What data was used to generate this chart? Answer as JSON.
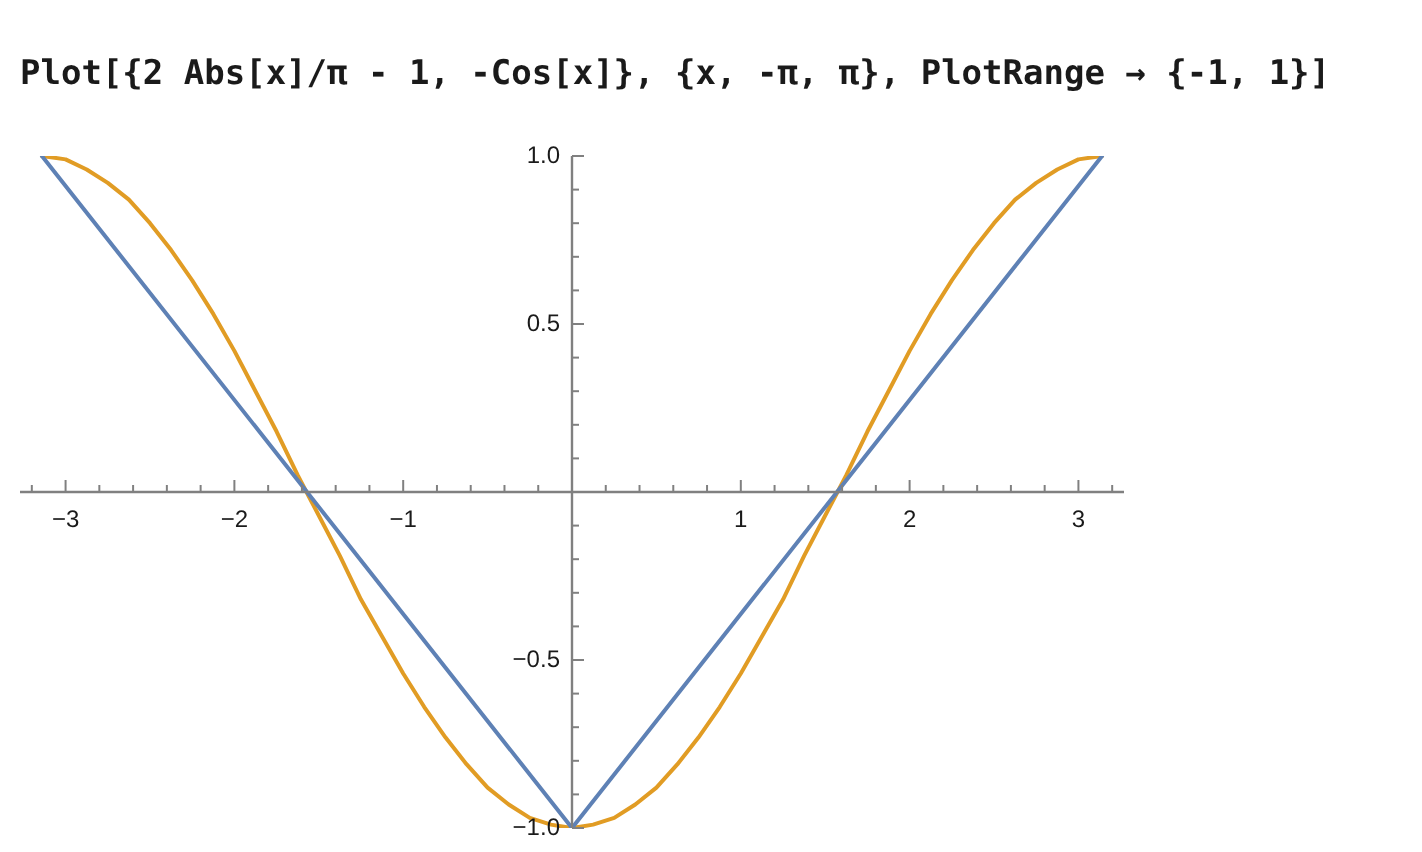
{
  "chart_data": {
    "type": "line",
    "title": "Plot[{2 Abs[x]/π - 1, -Cos[x]}, {x, -π, π}, PlotRange → {-1, 1}]",
    "xlim": [
      -3.27,
      3.27
    ],
    "xticks": [
      {
        "value": -3.2,
        "label": null
      },
      {
        "value": -3,
        "label": "−3"
      },
      {
        "value": -2.8,
        "label": null
      },
      {
        "value": -2.6,
        "label": null
      },
      {
        "value": -2.4,
        "label": null
      },
      {
        "value": -2.2,
        "label": null
      },
      {
        "value": -2,
        "label": "−2"
      },
      {
        "value": -1.8,
        "label": null
      },
      {
        "value": -1.6,
        "label": null
      },
      {
        "value": -1.4,
        "label": null
      },
      {
        "value": -1.2,
        "label": null
      },
      {
        "value": -1,
        "label": "−1"
      },
      {
        "value": -0.8,
        "label": null
      },
      {
        "value": -0.6,
        "label": null
      },
      {
        "value": -0.4,
        "label": null
      },
      {
        "value": -0.2,
        "label": null
      },
      {
        "value": 0.2,
        "label": null
      },
      {
        "value": 0.4,
        "label": null
      },
      {
        "value": 0.6,
        "label": null
      },
      {
        "value": 0.8,
        "label": null
      },
      1,
      {
        "value": 1.2,
        "label": null
      },
      {
        "value": 1.4,
        "label": null
      },
      {
        "value": 1.6,
        "label": null
      },
      {
        "value": 1.8,
        "label": null
      },
      2,
      {
        "value": 2.2,
        "label": null
      },
      {
        "value": 2.4,
        "label": null
      },
      {
        "value": 2.6,
        "label": null
      },
      {
        "value": 2.8,
        "label": null
      },
      3,
      {
        "value": 3.2,
        "label": null
      }
    ],
    "ylim": [
      -1,
      1
    ],
    "yticks": [
      {
        "value": -1,
        "label": "−1.0"
      },
      {
        "value": -0.9,
        "label": null
      },
      {
        "value": -0.8,
        "label": null
      },
      {
        "value": -0.7,
        "label": null
      },
      {
        "value": -0.6,
        "label": null
      },
      {
        "value": -0.5,
        "label": "−0.5"
      },
      {
        "value": -0.4,
        "label": null
      },
      {
        "value": -0.3,
        "label": null
      },
      {
        "value": -0.2,
        "label": null
      },
      {
        "value": -0.1,
        "label": null
      },
      {
        "value": 0.1,
        "label": null
      },
      {
        "value": 0.2,
        "label": null
      },
      {
        "value": 0.3,
        "label": null
      },
      {
        "value": 0.4,
        "label": null
      },
      0.5,
      {
        "value": 0.6,
        "label": null
      },
      {
        "value": 0.7,
        "label": null
      },
      {
        "value": 0.8,
        "label": null
      },
      {
        "value": 0.9,
        "label": null
      },
      {
        "value": 1,
        "label": "1.0"
      }
    ],
    "series": [
      {
        "color": "#5e81b5",
        "x": [
          -3.14,
          0,
          3.14
        ],
        "values": [
          1,
          -1,
          1
        ]
      },
      {
        "color": "#e19c24",
        "x": [
          -3.14,
          -3,
          -2.875,
          -2.75,
          -2.625,
          -2.5,
          -2.375,
          -2.25,
          -2.125,
          -2,
          -1.875,
          -1.75,
          -1.625,
          -1.5,
          -1.375,
          -1.25,
          -1.125,
          -1,
          -0.875,
          -0.75,
          -0.625,
          -0.5,
          -0.375,
          -0.25,
          -0.125,
          0,
          0.125,
          0.25,
          0.375,
          0.5,
          0.625,
          0.75,
          0.875,
          1,
          1.125,
          1.25,
          1.375,
          1.5,
          1.625,
          1.75,
          1.875,
          2,
          2.125,
          2.25,
          2.375,
          2.5,
          2.625,
          2.75,
          2.875,
          3,
          3.14
        ],
        "values": [
          1,
          0.99,
          0.96,
          0.92,
          0.87,
          0.8,
          0.72,
          0.63,
          0.53,
          0.42,
          0.3,
          0.18,
          0.05,
          -0.07,
          -0.19,
          -0.32,
          -0.43,
          -0.54,
          -0.64,
          -0.73,
          -0.81,
          -0.88,
          -0.93,
          -0.97,
          -0.99,
          -1,
          -0.99,
          -0.97,
          -0.93,
          -0.88,
          -0.81,
          -0.73,
          -0.64,
          -0.54,
          -0.43,
          -0.32,
          -0.19,
          -0.07,
          0.05,
          0.18,
          0.3,
          0.42,
          0.53,
          0.63,
          0.72,
          0.8,
          0.87,
          0.92,
          0.96,
          0.99,
          1
        ]
      }
    ]
  }
}
